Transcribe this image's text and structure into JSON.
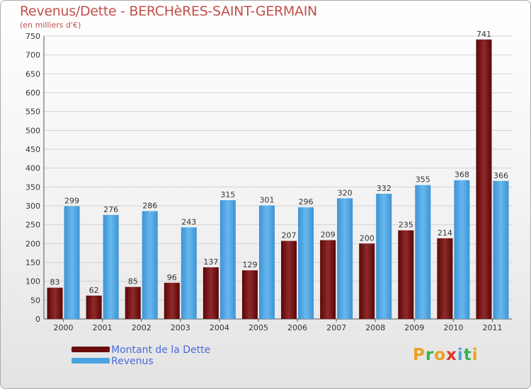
{
  "header": {
    "title": "Revenus/Dette - BERCHèRES-SAINT-GERMAIN",
    "subtitle": "(en milliers d'€)"
  },
  "legend": [
    {
      "label": "Montant de la Dette",
      "color": "#6b0d0d"
    },
    {
      "label": "Revenus",
      "color": "#4aa3e0"
    }
  ],
  "logo": {
    "text": "Proxiti"
  },
  "colors": {
    "dette": "#6b0d0d",
    "revenus": "#4aa3e0",
    "text": "#c1504a",
    "legend_text": "#4b69d8"
  },
  "chart_data": {
    "type": "bar",
    "title": "Revenus/Dette - BERCHèRES-SAINT-GERMAIN",
    "subtitle": "(en milliers d'€)",
    "categories": [
      "2000",
      "2001",
      "2002",
      "2003",
      "2004",
      "2005",
      "2006",
      "2007",
      "2008",
      "2009",
      "2010",
      "2011"
    ],
    "series": [
      {
        "name": "Montant de la Dette",
        "values": [
          83,
          62,
          85,
          96,
          137,
          129,
          207,
          209,
          200,
          235,
          214,
          741
        ]
      },
      {
        "name": "Revenus",
        "values": [
          299,
          276,
          286,
          243,
          315,
          301,
          296,
          320,
          332,
          355,
          368,
          366
        ]
      }
    ],
    "ylim": [
      0,
      750
    ],
    "yticks": [
      0,
      50,
      100,
      150,
      200,
      250,
      300,
      350,
      400,
      450,
      500,
      550,
      600,
      650,
      700,
      750
    ],
    "grid": true,
    "legend_position": "bottom-left"
  }
}
